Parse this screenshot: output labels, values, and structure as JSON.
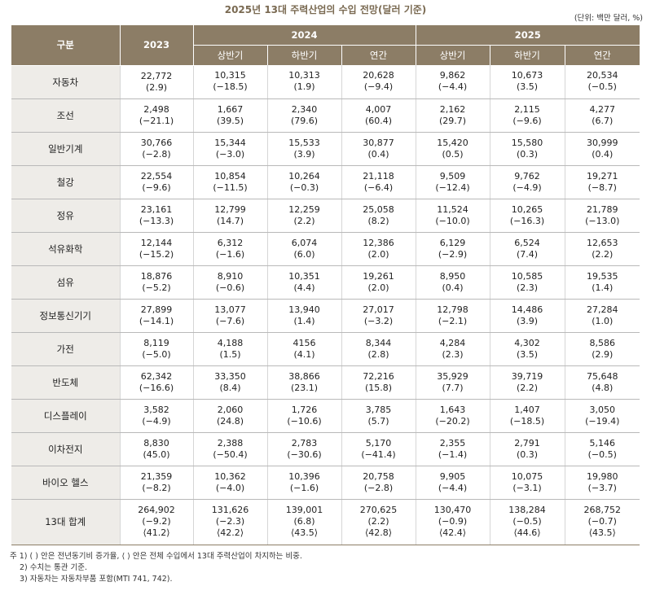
{
  "title": "2025년 13대 주력산업의 수입 전망(달러 기준)",
  "unit": "(단위: 백만 달러, %)",
  "headers": {
    "category": "구분",
    "y2023": "2023",
    "y2024": "2024",
    "y2025": "2025",
    "h1": "상반기",
    "h2": "하반기",
    "annual": "연간"
  },
  "rows": [
    {
      "name": "자동차",
      "cells": [
        [
          "22,772",
          "(2.9)"
        ],
        [
          "10,315",
          "(−18.5)"
        ],
        [
          "10,313",
          "(1.9)"
        ],
        [
          "20,628",
          "(−9.4)"
        ],
        [
          "9,862",
          "(−4.4)"
        ],
        [
          "10,673",
          "(3.5)"
        ],
        [
          "20,534",
          "(−0.5)"
        ]
      ]
    },
    {
      "name": "조선",
      "cells": [
        [
          "2,498",
          "(−21.1)"
        ],
        [
          "1,667",
          "(39.5)"
        ],
        [
          "2,340",
          "(79.6)"
        ],
        [
          "4,007",
          "(60.4)"
        ],
        [
          "2,162",
          "(29.7)"
        ],
        [
          "2,115",
          "(−9.6)"
        ],
        [
          "4,277",
          "(6.7)"
        ]
      ]
    },
    {
      "name": "일반기계",
      "cells": [
        [
          "30,766",
          "(−2.8)"
        ],
        [
          "15,344",
          "(−3.0)"
        ],
        [
          "15,533",
          "(3.9)"
        ],
        [
          "30,877",
          "(0.4)"
        ],
        [
          "15,420",
          "(0.5)"
        ],
        [
          "15,580",
          "(0.3)"
        ],
        [
          "30,999",
          "(0.4)"
        ]
      ]
    },
    {
      "name": "철강",
      "cells": [
        [
          "22,554",
          "(−9.6)"
        ],
        [
          "10,854",
          "(−11.5)"
        ],
        [
          "10,264",
          "(−0.3)"
        ],
        [
          "21,118",
          "(−6.4)"
        ],
        [
          "9,509",
          "(−12.4)"
        ],
        [
          "9,762",
          "(−4.9)"
        ],
        [
          "19,271",
          "(−8.7)"
        ]
      ]
    },
    {
      "name": "정유",
      "cells": [
        [
          "23,161",
          "(−13.3)"
        ],
        [
          "12,799",
          "(14.7)"
        ],
        [
          "12,259",
          "(2.2)"
        ],
        [
          "25,058",
          "(8.2)"
        ],
        [
          "11,524",
          "(−10.0)"
        ],
        [
          "10,265",
          "(−16.3)"
        ],
        [
          "21,789",
          "(−13.0)"
        ]
      ]
    },
    {
      "name": "석유화학",
      "cells": [
        [
          "12,144",
          "(−15.2)"
        ],
        [
          "6,312",
          "(−1.6)"
        ],
        [
          "6,074",
          "(6.0)"
        ],
        [
          "12,386",
          "(2.0)"
        ],
        [
          "6,129",
          "(−2.9)"
        ],
        [
          "6,524",
          "(7.4)"
        ],
        [
          "12,653",
          "(2.2)"
        ]
      ]
    },
    {
      "name": "섬유",
      "cells": [
        [
          "18,876",
          "(−5.2)"
        ],
        [
          "8,910",
          "(−0.6)"
        ],
        [
          "10,351",
          "(4.4)"
        ],
        [
          "19,261",
          "(2.0)"
        ],
        [
          "8,950",
          "(0.4)"
        ],
        [
          "10,585",
          "(2.3)"
        ],
        [
          "19,535",
          "(1.4)"
        ]
      ]
    },
    {
      "name": "정보통신기기",
      "cells": [
        [
          "27,899",
          "(−14.1)"
        ],
        [
          "13,077",
          "(−7.6)"
        ],
        [
          "13,940",
          "(1.4)"
        ],
        [
          "27,017",
          "(−3.2)"
        ],
        [
          "12,798",
          "(−2.1)"
        ],
        [
          "14,486",
          "(3.9)"
        ],
        [
          "27,284",
          "(1.0)"
        ]
      ]
    },
    {
      "name": "가전",
      "cells": [
        [
          "8,119",
          "(−5.0)"
        ],
        [
          "4,188",
          "(1.5)"
        ],
        [
          "4156",
          "(4.1)"
        ],
        [
          "8,344",
          "(2.8)"
        ],
        [
          "4,284",
          "(2.3)"
        ],
        [
          "4,302",
          "(3.5)"
        ],
        [
          "8,586",
          "(2.9)"
        ]
      ]
    },
    {
      "name": "반도체",
      "cells": [
        [
          "62,342",
          "(−16.6)"
        ],
        [
          "33,350",
          "(8.4)"
        ],
        [
          "38,866",
          "(23.1)"
        ],
        [
          "72,216",
          "(15.8)"
        ],
        [
          "35,929",
          "(7.7)"
        ],
        [
          "39,719",
          "(2.2)"
        ],
        [
          "75,648",
          "(4.8)"
        ]
      ]
    },
    {
      "name": "디스플레이",
      "cells": [
        [
          "3,582",
          "(−4.9)"
        ],
        [
          "2,060",
          "(24.8)"
        ],
        [
          "1,726",
          "(−10.6)"
        ],
        [
          "3,785",
          "(5.7)"
        ],
        [
          "1,643",
          "(−20.2)"
        ],
        [
          "1,407",
          "(−18.5)"
        ],
        [
          "3,050",
          "(−19.4)"
        ]
      ]
    },
    {
      "name": "이차전지",
      "cells": [
        [
          "8,830",
          "(45.0)"
        ],
        [
          "2,388",
          "(−50.4)"
        ],
        [
          "2,783",
          "(−30.6)"
        ],
        [
          "5,170",
          "(−41.4)"
        ],
        [
          "2,355",
          "(−1.4)"
        ],
        [
          "2,791",
          "(0.3)"
        ],
        [
          "5,146",
          "(−0.5)"
        ]
      ]
    },
    {
      "name": "바이오 헬스",
      "cells": [
        [
          "21,359",
          "(−8.2)"
        ],
        [
          "10,362",
          "(−4.0)"
        ],
        [
          "10,396",
          "(−1.6)"
        ],
        [
          "20,758",
          "(−2.8)"
        ],
        [
          "9,905",
          "(−4.4)"
        ],
        [
          "10,075",
          "(−3.1)"
        ],
        [
          "19,980",
          "(−3.7)"
        ]
      ]
    },
    {
      "name": "13대 합계",
      "cells": [
        [
          "264,902",
          "(−9.2)",
          "⟨41.2⟩"
        ],
        [
          "131,626",
          "(−2.3)",
          "⟨42.2⟩"
        ],
        [
          "139,001",
          "(6.8)",
          "⟨43.5⟩"
        ],
        [
          "270,625",
          "(2.2)",
          "⟨42.8⟩"
        ],
        [
          "130,470",
          "(−0.9)",
          "⟨42.4⟩"
        ],
        [
          "138,284",
          "(−0.5)",
          "⟨44.6⟩"
        ],
        [
          "268,752",
          "(−0.7)",
          "⟨43.5⟩"
        ]
      ]
    }
  ],
  "notes": [
    "주 1) ( ) 안은 전년동기비 증가율, ⟨ ⟩ 안은 전체 수입에서 13대 주력산업이 차지하는 비중.",
    "2) 수치는 통관 기준.",
    "3) 자동차는 자동차부품 포함(MTI 741, 742)."
  ]
}
